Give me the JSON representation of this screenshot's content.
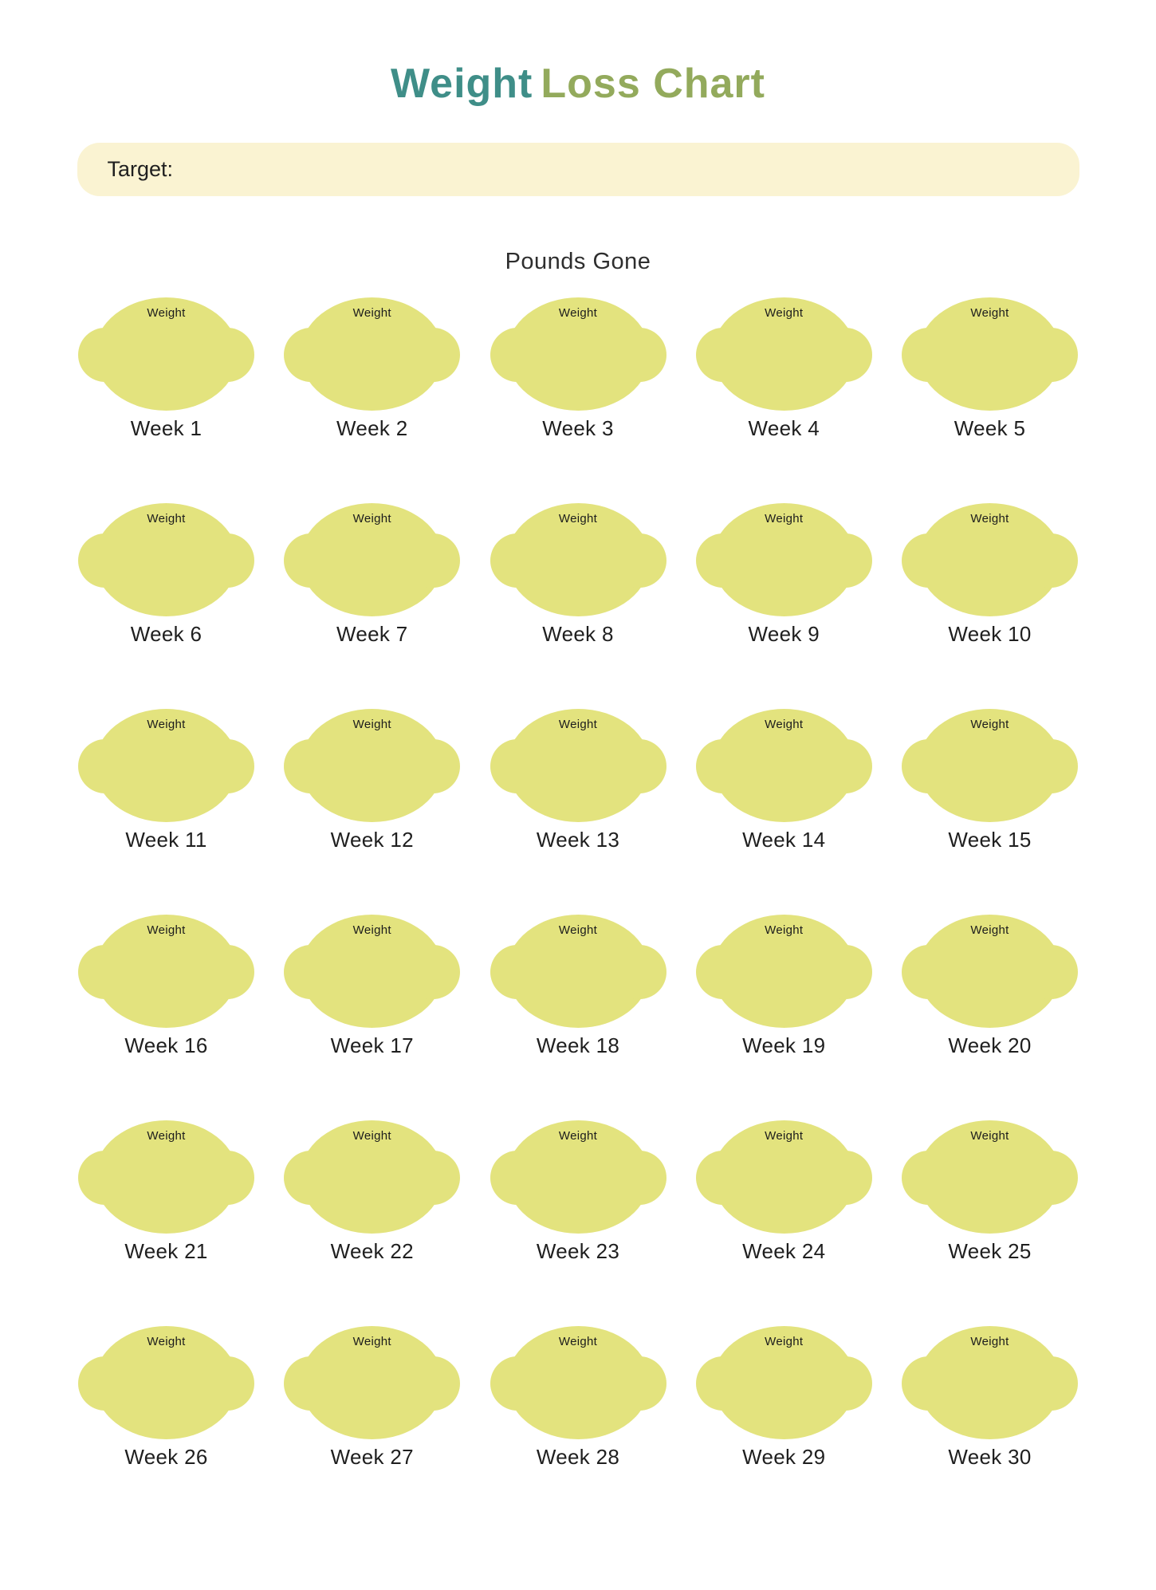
{
  "title": {
    "part1": "Weight",
    "part2": "Loss Chart"
  },
  "target": {
    "label": "Target:",
    "value": "",
    "placeholder": ""
  },
  "section": {
    "heading": "Pounds Gone"
  },
  "grid": {
    "badge_label": "Weight",
    "columns": 5,
    "weeks": [
      "Week 1",
      "Week 2",
      "Week 3",
      "Week 4",
      "Week 5",
      "Week 6",
      "Week 7",
      "Week 8",
      "Week 9",
      "Week 10",
      "Week 11",
      "Week 12",
      "Week 13",
      "Week 14",
      "Week 15",
      "Week 16",
      "Week 17",
      "Week 18",
      "Week 19",
      "Week 20",
      "Week 21",
      "Week 22",
      "Week 23",
      "Week 24",
      "Week 25",
      "Week 26",
      "Week 27",
      "Week 28",
      "Week 29",
      "Week 30"
    ]
  },
  "colors": {
    "title_primary": "#3F8E88",
    "title_secondary": "#93AA5C",
    "target_bar_bg": "#FAF3D2",
    "lemon_fill": "#E3E37E",
    "text_dark": "#1F1F1F",
    "heading_color": "#2E2E2E"
  }
}
